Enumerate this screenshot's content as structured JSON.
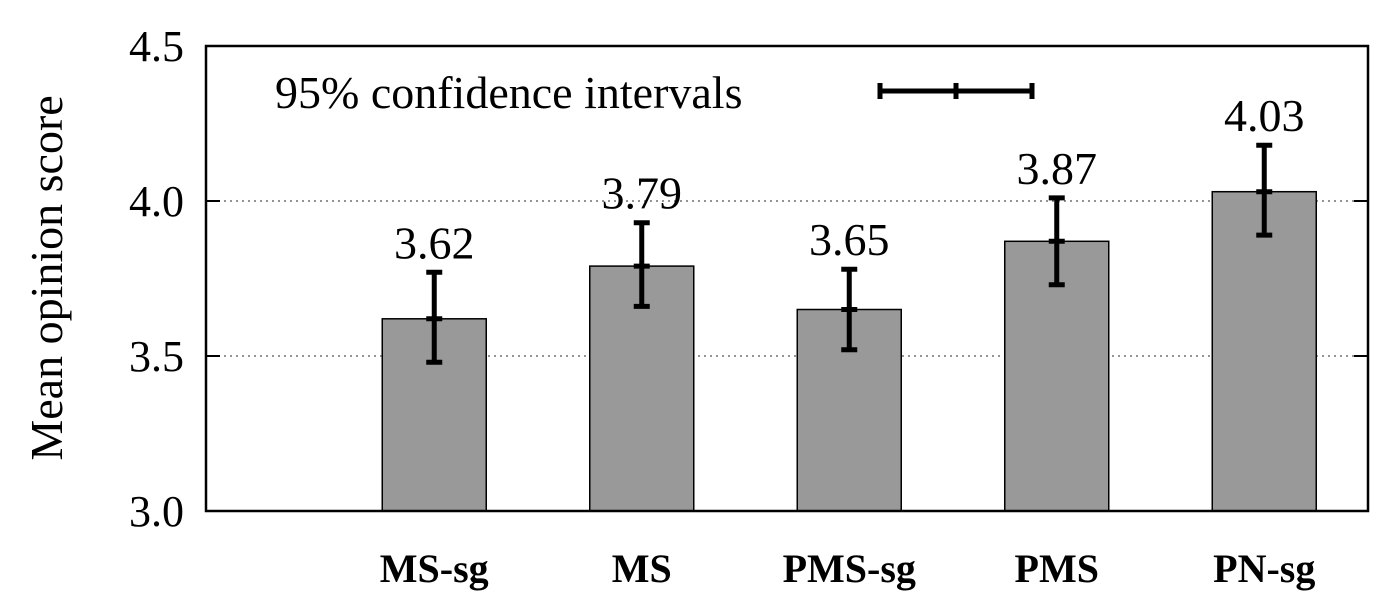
{
  "chart_data": {
    "type": "bar",
    "title": "",
    "xlabel": "",
    "ylabel": "Mean opinion score",
    "ylim": [
      3.0,
      4.5
    ],
    "yticks": [
      "3.0",
      "3.5",
      "4.0",
      "4.5"
    ],
    "grid": "horizontal dotted at 3.5 and 4.0",
    "categories": [
      "MS-sg",
      "MS",
      "PMS-sg",
      "PMS",
      "PN-sg"
    ],
    "values": [
      3.62,
      3.79,
      3.65,
      3.87,
      4.03
    ],
    "value_labels": [
      "3.62",
      "3.79",
      "3.65",
      "3.87",
      "4.03"
    ],
    "ci_lower": [
      3.48,
      3.66,
      3.52,
      3.73,
      3.89
    ],
    "ci_upper": [
      3.77,
      3.93,
      3.78,
      4.01,
      4.18
    ],
    "legend": {
      "label": "95% confidence intervals",
      "position": "top-left"
    },
    "colors": {
      "bar_fill": "#999999",
      "bar_stroke": "#000000",
      "error_bar": "#000000",
      "grid": "#555555"
    }
  }
}
